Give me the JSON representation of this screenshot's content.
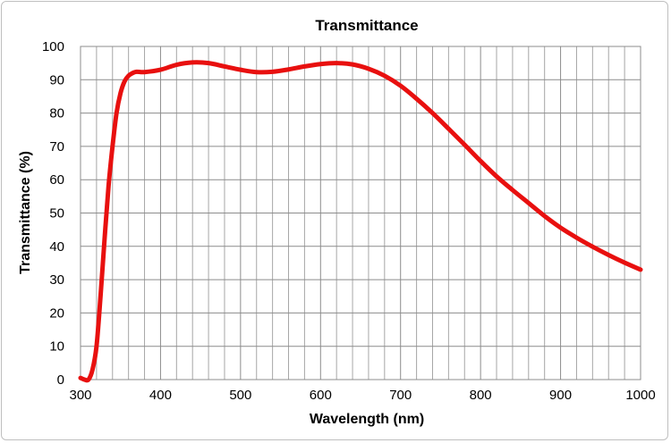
{
  "chart_data": {
    "type": "line",
    "title": "Transmittance",
    "xlabel": "Wavelength (nm)",
    "ylabel": "Transmittance (%)",
    "xlim": [
      300,
      1000
    ],
    "ylim": [
      0,
      100
    ],
    "x_ticks": [
      300,
      400,
      500,
      600,
      700,
      800,
      900,
      1000
    ],
    "y_ticks": [
      0,
      10,
      20,
      30,
      40,
      50,
      60,
      70,
      80,
      90,
      100
    ],
    "grid": true,
    "minor_x_grid_step": 20,
    "line_color": "#e8100f",
    "series": [
      {
        "x": [
          300,
          305,
          310,
          315,
          320,
          325,
          330,
          335,
          340,
          345,
          350,
          355,
          360,
          365,
          370,
          380,
          400,
          420,
          440,
          460,
          480,
          500,
          520,
          540,
          560,
          580,
          600,
          620,
          640,
          660,
          680,
          700,
          720,
          740,
          760,
          780,
          800,
          820,
          840,
          860,
          880,
          900,
          920,
          940,
          960,
          980,
          1000
        ],
        "y": [
          0.5,
          0,
          0,
          3,
          10,
          25,
          42,
          58,
          70,
          80,
          86,
          89.5,
          91.2,
          92,
          92.4,
          92.3,
          93,
          94.5,
          95.2,
          95,
          94,
          93,
          92.3,
          92.4,
          93.1,
          94,
          94.7,
          95,
          94.6,
          93.3,
          91.2,
          88.2,
          84.3,
          80,
          75.3,
          70.5,
          65.6,
          61,
          56.9,
          53,
          49.1,
          45.6,
          42.6,
          39.9,
          37.4,
          35.1,
          33
        ]
      }
    ]
  }
}
